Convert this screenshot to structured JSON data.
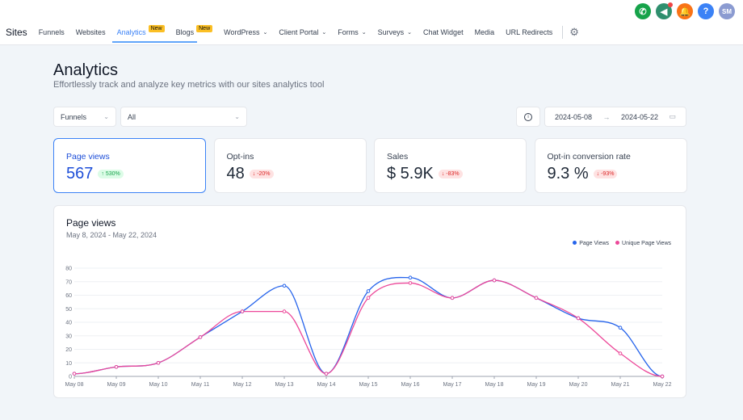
{
  "topbar": {
    "icons": [
      {
        "name": "phone-icon",
        "color": "#16a34a",
        "glyph": "✆"
      },
      {
        "name": "megaphone-icon",
        "color": "#2f8f6e",
        "glyph": "📣"
      },
      {
        "name": "bell-icon",
        "color": "#f97316",
        "glyph": "🔔"
      },
      {
        "name": "help-icon",
        "color": "#3b82f6",
        "glyph": "?"
      },
      {
        "name": "avatar",
        "color": "#8b9bd1",
        "glyph": "SM"
      }
    ]
  },
  "nav": {
    "brand": "Sites",
    "items": [
      {
        "label": "Funnels"
      },
      {
        "label": "Websites"
      },
      {
        "label": "Analytics",
        "badge": "New",
        "active": true
      },
      {
        "label": "Blogs",
        "badge": "New"
      },
      {
        "label": "WordPress",
        "dropdown": true
      },
      {
        "label": "Client Portal",
        "dropdown": true
      },
      {
        "label": "Forms",
        "dropdown": true
      },
      {
        "label": "Surveys",
        "dropdown": true
      },
      {
        "label": "Chat Widget"
      },
      {
        "label": "Media"
      },
      {
        "label": "URL Redirects"
      }
    ]
  },
  "page": {
    "title": "Analytics",
    "subtitle": "Effortlessly track and analyze key metrics with our sites analytics tool"
  },
  "filters": {
    "type": "Funnels",
    "scope": "All",
    "start_date": "2024-05-08",
    "end_date": "2024-05-22"
  },
  "cards": [
    {
      "label": "Page views",
      "value": "567",
      "change": "↑ 530%",
      "dir": "up"
    },
    {
      "label": "Opt-ins",
      "value": "48",
      "change": "↓ -20%",
      "dir": "down"
    },
    {
      "label": "Sales",
      "value": "$ 5.9K",
      "change": "↓ -83%",
      "dir": "down"
    },
    {
      "label": "Opt-in conversion rate",
      "value": "9.3 %",
      "change": "↓ -93%",
      "dir": "down"
    }
  ],
  "chart_data": {
    "type": "line",
    "title": "Page views",
    "subtitle": "May 8, 2024 - May 22, 2024",
    "legend_position": "top-right",
    "ylim": [
      0,
      80
    ],
    "yticks": [
      0,
      10,
      20,
      30,
      40,
      50,
      60,
      70,
      80
    ],
    "categories": [
      "May 08",
      "May 09",
      "May 10",
      "May 11",
      "May 12",
      "May 13",
      "May 14",
      "May 15",
      "May 16",
      "May 17",
      "May 18",
      "May 19",
      "May 20",
      "May 21",
      "May 22"
    ],
    "series": [
      {
        "name": "Page Views",
        "color": "#2563eb",
        "values": [
          2,
          7,
          10,
          29,
          48,
          67,
          2,
          63,
          73,
          58,
          71,
          58,
          43,
          36,
          0
        ]
      },
      {
        "name": "Unique Page Views",
        "color": "#ec4899",
        "values": [
          2,
          7,
          10,
          29,
          48,
          48,
          2,
          58,
          69,
          58,
          71,
          58,
          43,
          17,
          0
        ]
      }
    ]
  }
}
